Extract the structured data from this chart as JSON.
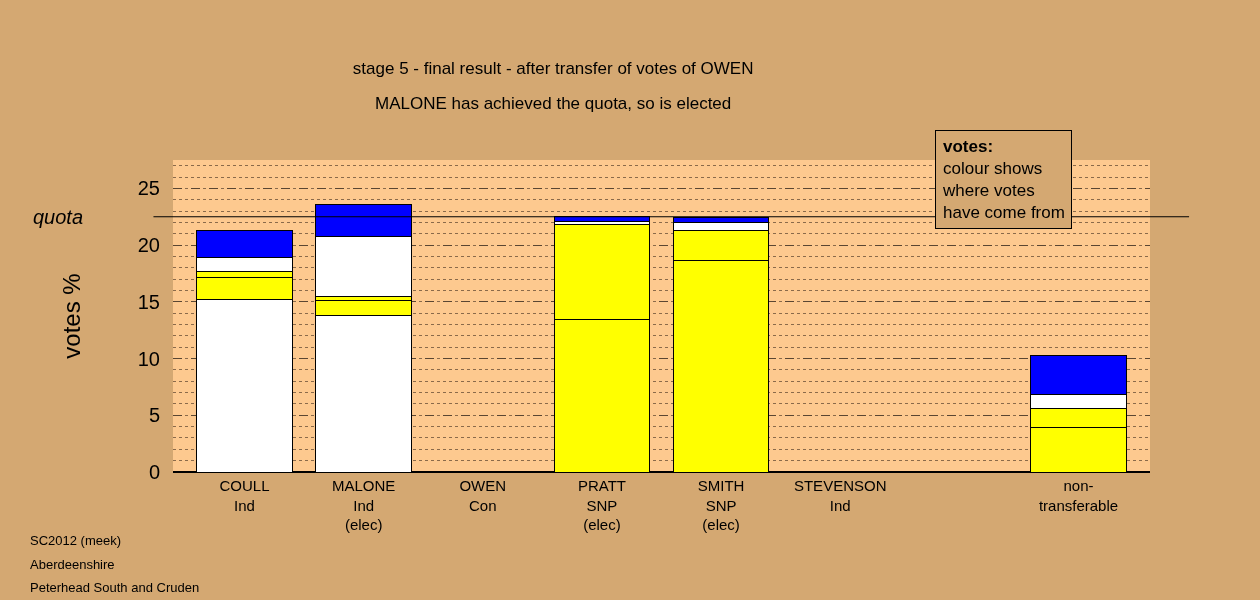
{
  "chart_data": {
    "type": "bar",
    "stacked": true,
    "title": "stage 5 - final result - after transfer of votes of OWEN",
    "subtitle": "MALONE has achieved the quota, so is elected",
    "ylabel": "votes %",
    "categories": [
      "COULL\nInd",
      "MALONE\nInd\n(elec)",
      "OWEN\nCon",
      "PRATT\nSNP\n(elec)",
      "SMITH\nSNP\n(elec)",
      "STEVENSON\nInd",
      null,
      "non-\ntransferable"
    ],
    "series": [
      {
        "values": [
          15.2,
          13.8,
          0,
          13.4,
          18.6,
          0,
          null,
          3.9
        ],
        "colors": [
          "#ffffff",
          "#ffffff",
          "#ffffff",
          "#ffff00",
          "#ffff00",
          "#ffffff",
          "#ffffff",
          "#ffff00"
        ]
      },
      {
        "values": [
          1.9,
          1.3,
          null,
          8.4,
          2.7,
          null,
          null,
          1.7
        ],
        "colors": [
          "#ffff00",
          "#ffff00",
          "#ffff00",
          "#ffff00",
          "#ffff00",
          "#ffff00",
          "#ffff00",
          "#ffff00"
        ]
      },
      {
        "values": [
          0.6,
          0.4,
          null,
          0.3,
          0.7,
          null,
          null,
          1.2
        ],
        "colors": [
          "#ffff00",
          "#ffff00",
          "#ffffff",
          "#ffffff",
          "#ffffff",
          "#ffffff",
          "#ffffff",
          "#ffffff"
        ]
      },
      {
        "values": [
          1.2,
          5.3,
          null,
          0.4,
          0.4,
          null,
          null,
          3.5
        ],
        "colors": [
          "#ffffff",
          "#ffffff",
          "#0000ff",
          "#0000ff",
          "#0000ff",
          "#0000ff",
          "#0000ff",
          "#0000ff"
        ]
      },
      {
        "values": [
          2.4,
          2.8,
          null,
          null,
          null,
          null,
          null,
          null
        ],
        "colors": [
          "#0000ff",
          "#0000ff",
          "#0000ff",
          "#0000ff",
          "#0000ff",
          "#0000ff",
          "#0000ff",
          "#0000ff"
        ]
      }
    ],
    "ylim": [
      0,
      27.5
    ],
    "yticks": [
      0,
      5,
      10,
      15,
      20,
      25
    ],
    "grid": "y",
    "ref_lines": [
      {
        "axis": "y",
        "value": 22.5,
        "label": "quota"
      }
    ],
    "annotations": [
      "votes:",
      "colour shows\nwhere votes\nhave come from",
      "SC2012 (meek)",
      "Aberdeenshire",
      "Peterhead South and Cruden"
    ]
  }
}
